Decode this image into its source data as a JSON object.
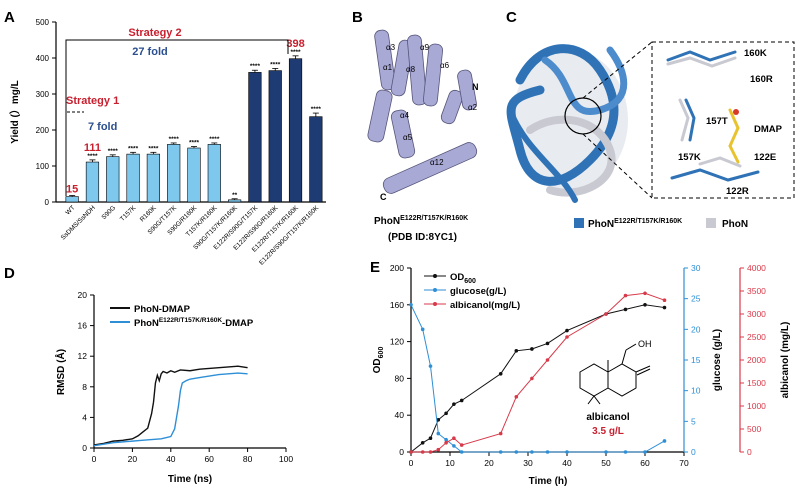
{
  "panels": {
    "A": "A",
    "B": "B",
    "C": "C",
    "D": "D",
    "E": "E"
  },
  "colors": {
    "light_bar": "#7ec8ee",
    "dark_bar": "#1f3b73",
    "red": "#c8202f",
    "blue_text": "#2b4f8f",
    "ribbon_blue": "#2f73b6",
    "ribbon_grey": "#c9c9d2",
    "cyl": "#a9a9d6",
    "od": "#111111",
    "glucose": "#2e8fd6",
    "albicanol": "#d83a4a"
  },
  "A": {
    "ylabel": "Yield (）mg/L",
    "yticks": [
      "0",
      "100",
      "200",
      "300",
      "400",
      "500"
    ],
    "strategy1": "Strategy 1",
    "strategy2": "Strategy 2",
    "fold1": "7 fold",
    "fold2": "27 fold",
    "chart_data": {
      "type": "bar",
      "categories": [
        "WT",
        "SsDMS/SsNDH",
        "S90G",
        "T157K",
        "R160K",
        "S90G/T157K",
        "S90G/R160K",
        "T157K/R160K",
        "S90G/T157K/R160K",
        "E122R/S90G/T157K",
        "E122R/S90G/R160K",
        "E122R/T157K/R160K",
        "E122R/S90G/T157K/R160K"
      ],
      "values": [
        15,
        111,
        126,
        133,
        133,
        160,
        150,
        160,
        6,
        360,
        365,
        398,
        237
      ],
      "errors": [
        3,
        6,
        5,
        5,
        5,
        4,
        4,
        4,
        3,
        6,
        6,
        8,
        10
      ],
      "sig": [
        "",
        "****",
        "****",
        "****",
        "****",
        "****",
        "****",
        "****",
        "**",
        "****",
        "****",
        "****",
        "****"
      ],
      "value_labels": [
        "15",
        "111",
        "",
        "",
        "",
        "",
        "",
        "",
        "",
        "",
        "",
        "398",
        ""
      ],
      "ylim": [
        0,
        500
      ]
    }
  },
  "B": {
    "label_line1": "PhoN",
    "label_sup": "E122R/T157K/R160K",
    "label_line2": "(PDB ID:8YC1)",
    "helices": [
      "α1",
      "α2",
      "α3",
      "α4",
      "α5",
      "α6",
      "α8",
      "α9",
      "α12"
    ],
    "n_term": "N",
    "c_term": "C"
  },
  "C": {
    "residues": [
      "160K",
      "160R",
      "157T",
      "DMAP",
      "157K",
      "122E",
      "122R"
    ],
    "legend_mut": "PhoN",
    "legend_mut_sup": "E122R/T157K/R160K",
    "legend_wt": "PhoN"
  },
  "D": {
    "ylabel": "RMSD (Å)",
    "xlabel": "Time (ns)",
    "xticks": [
      "0",
      "20",
      "40",
      "60",
      "80",
      "100"
    ],
    "yticks": [
      "0",
      "4",
      "8",
      "12",
      "16",
      "20"
    ],
    "legend": {
      "s1": "PhoN-DMAP",
      "s2_pre": "PhoN",
      "s2_sup": "E122R/T157K/R160K",
      "s2_post": "-DMAP"
    },
    "chart_data": {
      "type": "line",
      "xlim": [
        0,
        100
      ],
      "ylim": [
        0,
        20
      ],
      "series": [
        {
          "name": "PhoN-DMAP",
          "x": [
            0,
            5,
            10,
            15,
            20,
            23,
            25,
            28,
            30,
            31,
            32,
            33,
            34,
            35,
            36,
            38,
            40,
            42,
            45,
            50,
            55,
            60,
            65,
            70,
            75,
            80
          ],
          "y": [
            0.4,
            0.6,
            0.9,
            1.0,
            1.2,
            1.6,
            2.0,
            2.6,
            4.5,
            6.0,
            8.5,
            9.5,
            8.8,
            9.7,
            10.0,
            9.8,
            10.1,
            9.9,
            10.2,
            10.1,
            10.3,
            10.4,
            10.5,
            10.6,
            10.7,
            10.5
          ]
        },
        {
          "name": "PhoN-E122R/T157K/R160K-DMAP",
          "x": [
            0,
            5,
            10,
            15,
            20,
            25,
            30,
            35,
            40,
            42,
            43,
            44,
            45,
            46,
            48,
            50,
            55,
            60,
            65,
            70,
            75,
            80
          ],
          "y": [
            0.3,
            0.5,
            0.7,
            0.8,
            0.9,
            1.0,
            1.1,
            1.2,
            1.5,
            2.5,
            4.0,
            5.5,
            7.5,
            8.5,
            8.8,
            9.0,
            9.2,
            9.4,
            9.6,
            9.7,
            9.8,
            9.7
          ]
        }
      ]
    }
  },
  "E": {
    "xlabel": "Time (h)",
    "ylabel_left": "OD",
    "ylabel_left_sub": "600",
    "ylabel_mid": "glucose (g/L)",
    "ylabel_right": "albicanol (mg/L)",
    "xticks": [
      "0",
      "10",
      "20",
      "30",
      "40",
      "50",
      "60",
      "70"
    ],
    "yticks_left": [
      "0",
      "40",
      "80",
      "120",
      "160",
      "200"
    ],
    "yticks_mid": [
      "0",
      "5",
      "10",
      "15",
      "20",
      "25",
      "30"
    ],
    "yticks_right": [
      "0",
      "500",
      "1000",
      "1500",
      "2000",
      "2500",
      "3000",
      "3500",
      "4000"
    ],
    "legend": {
      "od": "OD",
      "od_sub": "600",
      "glucose": "glucose(g/L)",
      "albicanol": "albicanol(mg/L)"
    },
    "compound": "albicanol",
    "titer": "3.5 g/L",
    "oh": "OH",
    "chart_data": {
      "type": "line",
      "xlim": [
        0,
        70
      ],
      "series": [
        {
          "name": "OD600",
          "axis": "left",
          "x": [
            0,
            3,
            5,
            7,
            9,
            11,
            13,
            23,
            27,
            31,
            35,
            40,
            50,
            55,
            60,
            65
          ],
          "y": [
            0,
            10,
            15,
            35,
            42,
            52,
            56,
            85,
            110,
            112,
            118,
            132,
            150,
            155,
            160,
            157
          ]
        },
        {
          "name": "glucose(g/L)",
          "axis": "mid",
          "x": [
            0,
            3,
            5,
            7,
            9,
            11,
            13,
            23,
            27,
            31,
            35,
            40,
            50,
            55,
            60,
            65
          ],
          "y": [
            24,
            20,
            14,
            3,
            2,
            1,
            0,
            0,
            0,
            0,
            0,
            0,
            0,
            0,
            0,
            1.8
          ]
        },
        {
          "name": "albicanol(mg/L)",
          "axis": "right",
          "x": [
            0,
            3,
            5,
            7,
            9,
            11,
            13,
            23,
            27,
            31,
            35,
            40,
            50,
            55,
            60,
            65
          ],
          "y": [
            0,
            0,
            0,
            50,
            200,
            300,
            150,
            400,
            1200,
            1600,
            2000,
            2500,
            3000,
            3400,
            3450,
            3300
          ]
        }
      ],
      "ylim_left": [
        0,
        200
      ],
      "ylim_mid": [
        0,
        30
      ],
      "ylim_right": [
        0,
        4000
      ]
    }
  }
}
